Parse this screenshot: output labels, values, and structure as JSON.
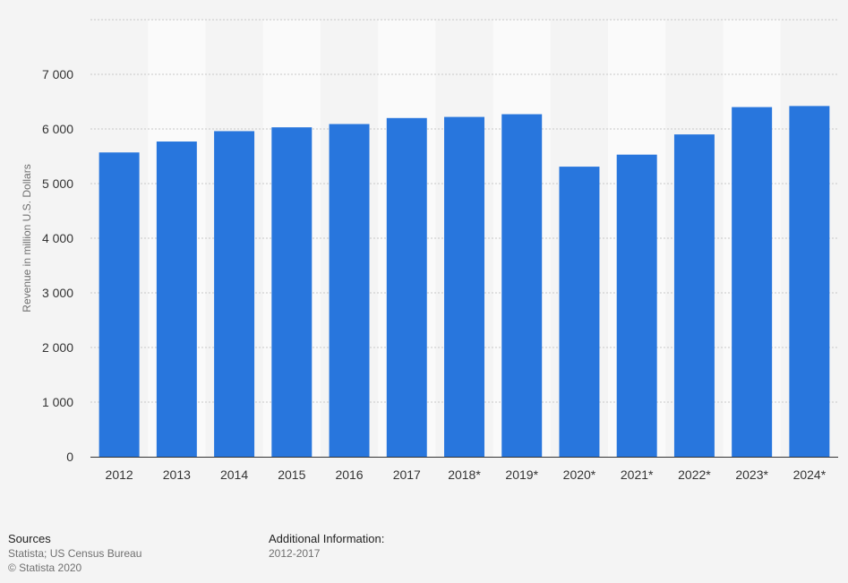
{
  "chart_data": {
    "type": "bar",
    "title": "",
    "xlabel": "",
    "ylabel": "Revenue in million U.S. Dollars",
    "categories": [
      "2012",
      "2013",
      "2014",
      "2015",
      "2016",
      "2017",
      "2018*",
      "2019*",
      "2020*",
      "2021*",
      "2022*",
      "2023*",
      "2024*"
    ],
    "values": [
      5570,
      5770,
      5960,
      6030,
      6090,
      6200,
      6220,
      6270,
      5310,
      5530,
      5900,
      6400,
      6420
    ],
    "ylim": [
      0,
      8000
    ],
    "yticks": [
      0,
      1000,
      2000,
      3000,
      4000,
      5000,
      6000,
      7000
    ],
    "ytick_labels": [
      "0",
      "1 000",
      "2 000",
      "3 000",
      "4 000",
      "5 000",
      "6 000",
      "7 000"
    ],
    "grid": true,
    "legend": "none",
    "colors": {
      "bar": "#2876dd",
      "grid": "#c8c8c8",
      "band_light": "#fafafa",
      "band_dark": "#f4f4f4",
      "tick_text": "#333333",
      "axis_label_text": "#707070"
    }
  },
  "footer": {
    "sources_heading": "Sources",
    "sources_text": "Statista; US Census Bureau",
    "copyright": "© Statista 2020",
    "additional_heading": "Additional Information:",
    "additional_text": "2012-2017"
  }
}
